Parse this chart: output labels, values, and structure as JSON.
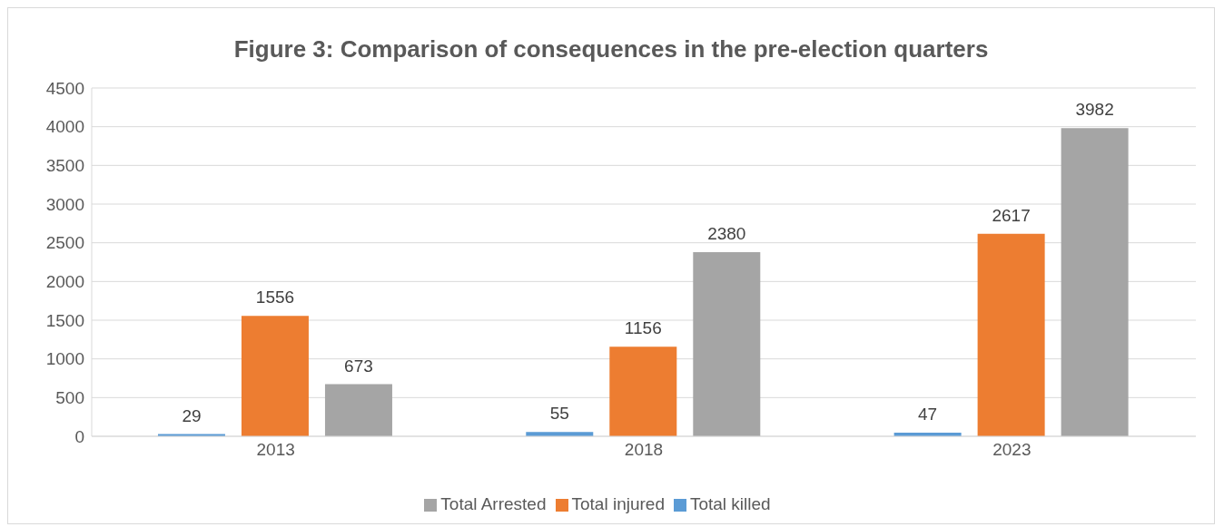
{
  "chart_data": {
    "type": "bar",
    "title": "Figure 3: Comparison of consequences in the pre-election quarters",
    "categories": [
      "2013",
      "2018",
      "2023"
    ],
    "series": [
      {
        "name": "Total killed",
        "color": "#5b9bd5",
        "values": [
          29,
          55,
          47
        ]
      },
      {
        "name": "Total injured",
        "color": "#ed7d31",
        "values": [
          1556,
          1156,
          2617
        ]
      },
      {
        "name": "Total Arrested",
        "color": "#a5a5a5",
        "values": [
          673,
          2380,
          3982
        ]
      }
    ],
    "ylim": [
      0,
      4500
    ],
    "yticks": [
      0,
      500,
      1000,
      1500,
      2000,
      2500,
      3000,
      3500,
      4000,
      4500
    ],
    "grid": "y",
    "legend": "bottom",
    "data_labels": true
  }
}
